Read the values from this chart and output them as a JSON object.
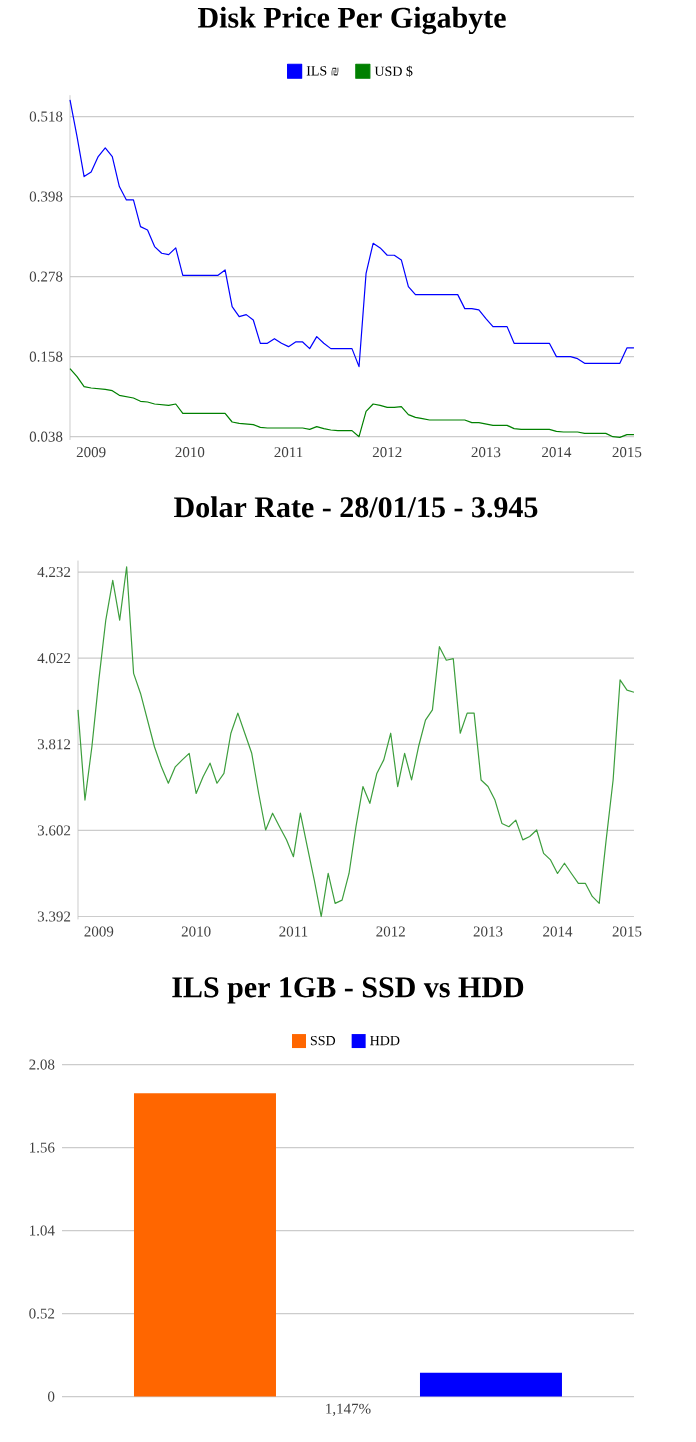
{
  "chart_data": [
    {
      "type": "line",
      "title": "Disk Price Per Gigabyte",
      "legend": "top",
      "grid": "y",
      "ylim": [
        0.033,
        0.55
      ],
      "yticks": [
        0.038,
        0.158,
        0.278,
        0.398,
        0.518
      ],
      "categories": [
        null,
        null,
        null,
        "2009",
        null,
        null,
        null,
        null,
        null,
        null,
        null,
        null,
        null,
        null,
        null,
        null,
        null,
        "2010",
        null,
        null,
        null,
        null,
        null,
        null,
        null,
        null,
        null,
        null,
        null,
        null,
        null,
        "2011",
        null,
        null,
        null,
        null,
        null,
        null,
        null,
        null,
        null,
        null,
        null,
        null,
        null,
        "2012",
        null,
        null,
        null,
        null,
        null,
        null,
        null,
        null,
        null,
        null,
        null,
        null,
        null,
        "2013",
        null,
        null,
        null,
        null,
        null,
        null,
        null,
        null,
        null,
        "2014",
        null,
        null,
        null,
        null,
        null,
        null,
        null,
        null,
        null,
        "2015",
        null
      ],
      "series": [
        {
          "name": "ILS ₪",
          "color": "#0000ff",
          "values": [
            0.543,
            0.488,
            0.428,
            0.435,
            0.458,
            0.471,
            0.458,
            0.413,
            0.393,
            0.393,
            0.353,
            0.348,
            0.323,
            0.313,
            0.311,
            0.321,
            0.28,
            0.28,
            0.28,
            0.28,
            0.28,
            0.28,
            0.288,
            0.233,
            0.218,
            0.221,
            0.213,
            0.178,
            0.178,
            0.185,
            0.178,
            0.173,
            0.18,
            0.18,
            0.17,
            0.188,
            0.178,
            0.17,
            0.17,
            0.17,
            0.17,
            0.143,
            0.283,
            0.328,
            0.321,
            0.31,
            0.31,
            0.303,
            0.263,
            0.251,
            0.251,
            0.251,
            0.251,
            0.251,
            0.251,
            0.251,
            0.23,
            0.23,
            0.228,
            0.215,
            0.203,
            0.203,
            0.203,
            0.178,
            0.178,
            0.178,
            0.178,
            0.178,
            0.178,
            0.158,
            0.158,
            0.158,
            0.155,
            0.148,
            0.148,
            0.148,
            0.148,
            0.148,
            0.148,
            0.171,
            0.171
          ]
        },
        {
          "name": "USD $",
          "color": "#008000",
          "values": [
            0.14,
            0.128,
            0.113,
            0.111,
            0.11,
            0.109,
            0.107,
            0.1,
            0.098,
            0.096,
            0.091,
            0.09,
            0.087,
            0.086,
            0.085,
            0.087,
            0.073,
            0.073,
            0.073,
            0.073,
            0.073,
            0.073,
            0.073,
            0.06,
            0.058,
            0.057,
            0.056,
            0.052,
            0.051,
            0.051,
            0.051,
            0.051,
            0.051,
            0.051,
            0.049,
            0.053,
            0.05,
            0.048,
            0.047,
            0.047,
            0.047,
            0.038,
            0.076,
            0.087,
            0.085,
            0.082,
            0.082,
            0.083,
            0.071,
            0.067,
            0.065,
            0.063,
            0.063,
            0.063,
            0.063,
            0.063,
            0.063,
            0.059,
            0.059,
            0.057,
            0.055,
            0.055,
            0.055,
            0.05,
            0.049,
            0.049,
            0.049,
            0.049,
            0.049,
            0.046,
            0.045,
            0.045,
            0.045,
            0.043,
            0.043,
            0.043,
            0.043,
            0.038,
            0.037,
            0.041,
            0.041
          ]
        }
      ]
    },
    {
      "type": "line",
      "title": "Dolar Rate - 28/01/15 - 3.945",
      "grid": "y",
      "ylim": [
        3.385,
        4.26
      ],
      "yticks": [
        3.392,
        3.602,
        3.812,
        4.022,
        4.232
      ],
      "color": "#3d9e3d",
      "categories": [
        null,
        null,
        null,
        "2009",
        null,
        null,
        null,
        null,
        null,
        null,
        null,
        null,
        null,
        null,
        null,
        null,
        null,
        "2010",
        null,
        null,
        null,
        null,
        null,
        null,
        null,
        null,
        null,
        null,
        null,
        null,
        null,
        "2011",
        null,
        null,
        null,
        null,
        null,
        null,
        null,
        null,
        null,
        null,
        null,
        null,
        null,
        "2012",
        null,
        null,
        null,
        null,
        null,
        null,
        null,
        null,
        null,
        null,
        null,
        null,
        null,
        "2013",
        null,
        null,
        null,
        null,
        null,
        null,
        null,
        null,
        null,
        "2014",
        null,
        null,
        null,
        null,
        null,
        null,
        null,
        null,
        null,
        "2015",
        null
      ],
      "values": [
        3.896,
        3.676,
        3.806,
        3.969,
        4.115,
        4.212,
        4.115,
        4.245,
        3.985,
        3.936,
        3.871,
        3.806,
        3.757,
        3.717,
        3.757,
        3.774,
        3.79,
        3.692,
        3.733,
        3.766,
        3.717,
        3.741,
        3.839,
        3.888,
        3.839,
        3.79,
        3.692,
        3.603,
        3.644,
        3.611,
        3.579,
        3.538,
        3.644,
        3.562,
        3.481,
        3.392,
        3.497,
        3.424,
        3.432,
        3.497,
        3.611,
        3.709,
        3.668,
        3.741,
        3.774,
        3.839,
        3.709,
        3.79,
        3.725,
        3.806,
        3.871,
        3.896,
        4.05,
        4.017,
        4.021,
        3.839,
        3.888,
        3.888,
        3.725,
        3.709,
        3.676,
        3.619,
        3.611,
        3.627,
        3.579,
        3.587,
        3.603,
        3.546,
        3.53,
        3.497,
        3.522,
        3.497,
        3.473,
        3.473,
        3.441,
        3.424,
        3.579,
        3.725,
        3.969,
        3.944,
        3.939
      ]
    },
    {
      "type": "bar",
      "title": "ILS per 1GB - SSD vs HDD",
      "legend": "top",
      "grid": "y",
      "ylim": [
        0,
        2.08
      ],
      "yticks": [
        0,
        0.52,
        1.04,
        1.56,
        2.08
      ],
      "categories": [
        "1,147%"
      ],
      "series": [
        {
          "name": "SSD",
          "color": "#ff6600",
          "values": [
            1.9
          ]
        },
        {
          "name": "HDD",
          "color": "#0000ff",
          "values": [
            0.15
          ]
        }
      ]
    }
  ]
}
